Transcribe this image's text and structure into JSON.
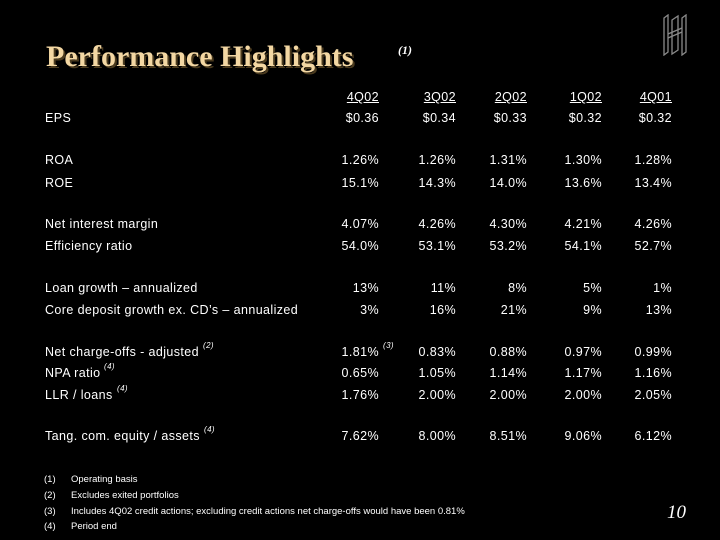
{
  "title": "Performance Highlights",
  "title_note": "(1)",
  "columns": [
    "4Q02",
    "3Q02",
    "2Q02",
    "1Q02",
    "4Q01"
  ],
  "rows": [
    {
      "label": "EPS",
      "values": [
        "$0.36",
        "$0.34",
        "$0.33",
        "$0.32",
        "$0.32"
      ]
    },
    {
      "label": "ROA",
      "values": [
        "1.26%",
        "1.26%",
        "1.31%",
        "1.30%",
        "1.28%"
      ]
    },
    {
      "label": "ROE",
      "values": [
        "15.1%",
        "14.3%",
        "14.0%",
        "13.6%",
        "13.4%"
      ]
    },
    {
      "label": "Net interest margin",
      "values": [
        "4.07%",
        "4.26%",
        "4.30%",
        "4.21%",
        "4.26%"
      ]
    },
    {
      "label": "Efficiency ratio",
      "values": [
        "54.0%",
        "53.1%",
        "53.2%",
        "54.1%",
        "52.7%"
      ]
    },
    {
      "label": "Loan growth – annualized",
      "values": [
        "13%",
        "11%",
        "8%",
        "5%",
        "1%"
      ]
    },
    {
      "label": "Core deposit growth ex. CD’s – annualized",
      "values": [
        "3%",
        "16%",
        "21%",
        "9%",
        "13%"
      ]
    },
    {
      "label": "Net charge-offs - adjusted",
      "label_note": "(2)",
      "values": [
        "1.81%",
        "0.83%",
        "0.88%",
        "0.97%",
        "0.99%"
      ],
      "first_value_note": "(3)"
    },
    {
      "label": "NPA ratio",
      "label_note": "(4)",
      "values": [
        "0.65%",
        "1.05%",
        "1.14%",
        "1.17%",
        "1.16%"
      ]
    },
    {
      "label": "LLR / loans",
      "label_note": "(4)",
      "values": [
        "1.76%",
        "2.00%",
        "2.00%",
        "2.00%",
        "2.05%"
      ]
    },
    {
      "label": "Tang. com. equity / assets",
      "label_note": "(4)",
      "values": [
        "7.62%",
        "8.00%",
        "8.51%",
        "9.06%",
        "6.12%"
      ]
    }
  ],
  "footnotes": [
    {
      "num": "(1)",
      "text": "Operating basis"
    },
    {
      "num": "(2)",
      "text": "Excludes exited portfolios"
    },
    {
      "num": "(3)",
      "text": "Includes 4Q02 credit actions; excluding credit actions net charge-offs would have been 0.81%"
    },
    {
      "num": "(4)",
      "text": "Period end"
    }
  ],
  "page_number": "10",
  "colors": {
    "background": "#000000",
    "title": "#f3d7a3",
    "text": "#ffffff"
  },
  "logo_icon": "company-monogram-logo"
}
